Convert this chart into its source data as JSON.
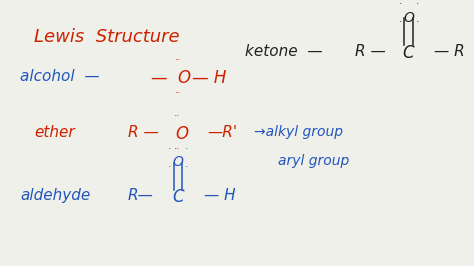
{
  "background_color": "#f0f0eb",
  "red": "#cc2200",
  "blue": "#2255bb",
  "dark": "#222222",
  "title": "Lewis  Structure",
  "alcohol_label": "alcohol  -",
  "ether_label": "ether",
  "aldehyde_label": "aldehyde",
  "ketone_label": "ketone  -",
  "arrow": "->alkyl group",
  "aryl": "aryl group"
}
